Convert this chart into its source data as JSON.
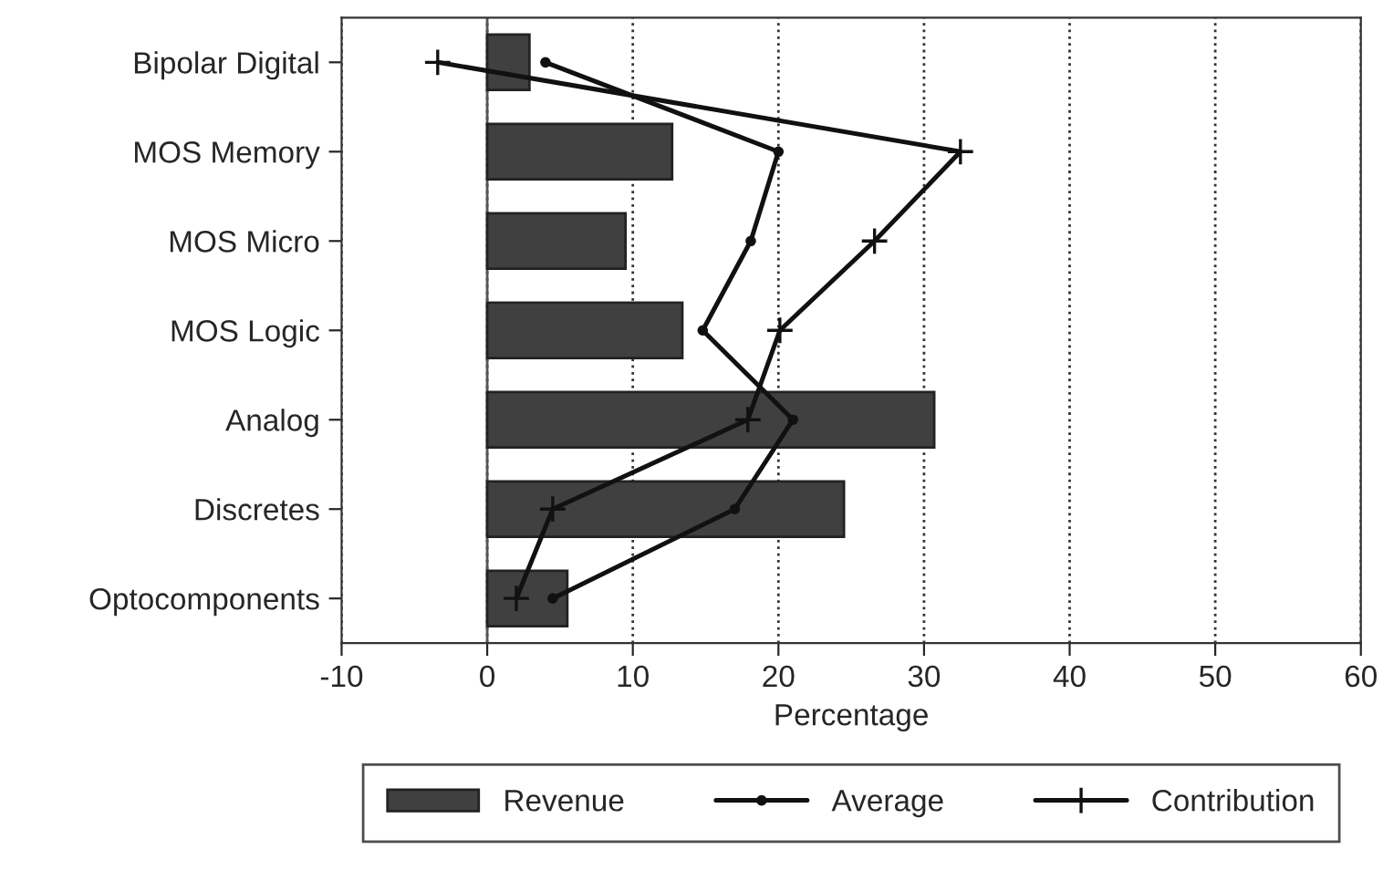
{
  "chart_data": {
    "type": "bar",
    "orientation": "horizontal",
    "xlabel": "Percentage",
    "categories": [
      "Bipolar Digital",
      "MOS Memory",
      "MOS Micro",
      "MOS Logic",
      "Analog",
      "Discretes",
      "Optocomponents"
    ],
    "series": [
      {
        "name": "Revenue",
        "color": "#404040",
        "values": [
          2.9,
          12.7,
          9.5,
          13.4,
          30.7,
          24.5,
          5.5
        ]
      },
      {
        "name": "Average",
        "type": "line",
        "color": "#111111",
        "marker": "circle",
        "values": [
          4.0,
          20.0,
          18.1,
          14.8,
          21.0,
          17.0,
          4.5
        ]
      },
      {
        "name": "Contribution",
        "type": "line",
        "color": "#111111",
        "marker": "cross",
        "values": [
          -3.4,
          32.5,
          26.6,
          20.1,
          17.9,
          4.5,
          2.0
        ]
      }
    ],
    "xlim": [
      -10,
      60
    ],
    "xticks": [
      -10,
      0,
      10,
      20,
      30,
      40,
      50,
      60
    ],
    "grid": "x",
    "legend": "bottom"
  }
}
